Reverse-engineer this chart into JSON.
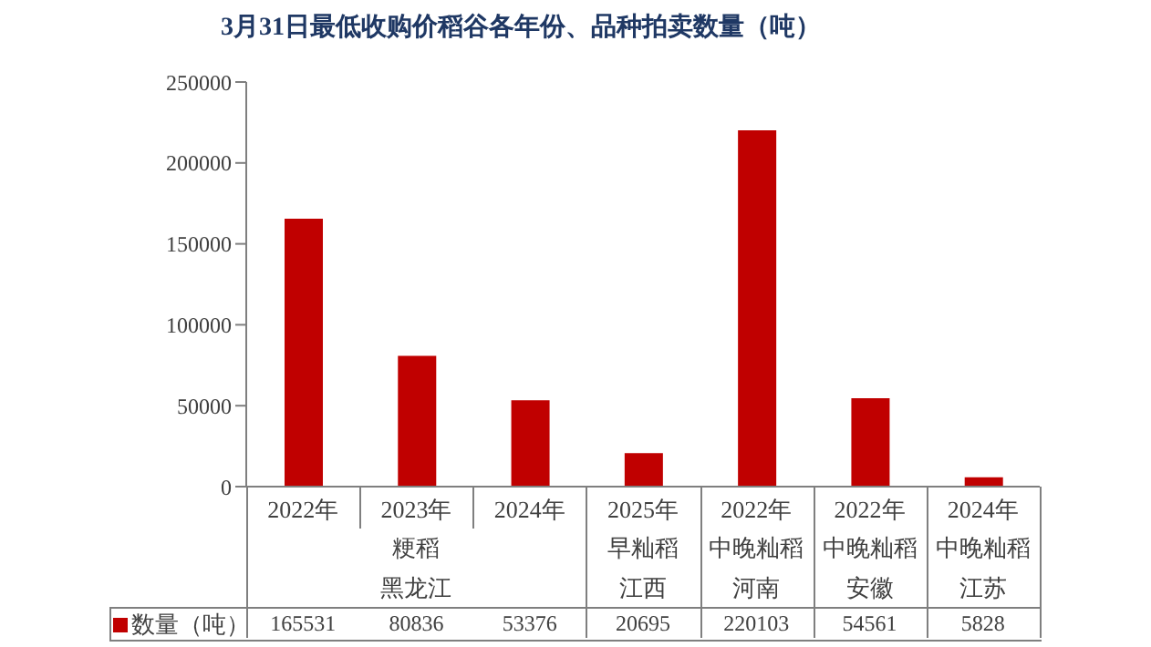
{
  "chart_data": {
    "type": "bar",
    "title": "3月31日最低收购价稻谷各年份、品种拍卖数量（吨）",
    "categories": [
      "2022年",
      "2023年",
      "2024年",
      "2025年",
      "2022年",
      "2022年",
      "2024年"
    ],
    "series": [
      {
        "name": "数量（吨）",
        "color": "#c00000",
        "values": [
          165531,
          80836,
          53376,
          20695,
          220103,
          54561,
          5828
        ]
      }
    ],
    "ylim": [
      0,
      250000
    ],
    "yticks": [
      0,
      50000,
      100000,
      150000,
      200000,
      250000
    ],
    "annotations": [
      "粳稻",
      "黑龙江",
      "早籼稻",
      "江西",
      "中晚籼稻",
      "河南",
      "中晚籼稻",
      "安徽",
      "中晚籼稻",
      "江苏"
    ],
    "data_labels": true,
    "legend": "bottom",
    "grid": false
  }
}
